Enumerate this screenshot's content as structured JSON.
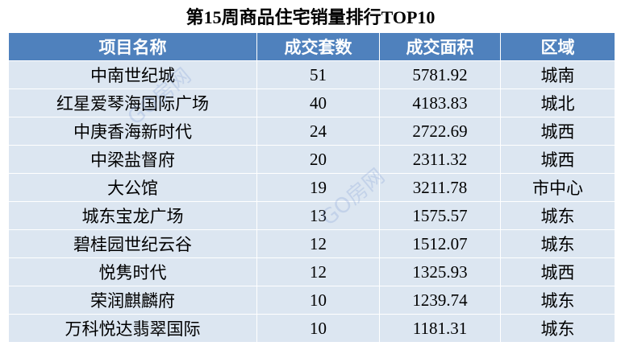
{
  "title": "第15周商品住宅销量排行TOP10",
  "watermark": "GO房网",
  "table": {
    "header": [
      "项目名称",
      "成交套数",
      "成交面积",
      "区域"
    ],
    "rows": [
      [
        "中南世纪城",
        "51",
        "5781.92",
        "城南"
      ],
      [
        "红星爱琴海国际广场",
        "40",
        "4183.83",
        "城北"
      ],
      [
        "中庚香海新时代",
        "24",
        "2722.69",
        "城西"
      ],
      [
        "中梁盐督府",
        "20",
        "2311.32",
        "城西"
      ],
      [
        "大公馆",
        "19",
        "3211.78",
        "市中心"
      ],
      [
        "城东宝龙广场",
        "13",
        "1575.57",
        "城东"
      ],
      [
        "碧桂园世纪云谷",
        "12",
        "1512.07",
        "城东"
      ],
      [
        "悦隽时代",
        "12",
        "1325.93",
        "城西"
      ],
      [
        "荣润麒麟府",
        "10",
        "1239.74",
        "城东"
      ],
      [
        "万科悦达翡翠国际",
        "10",
        "1181.31",
        "城东"
      ]
    ]
  }
}
